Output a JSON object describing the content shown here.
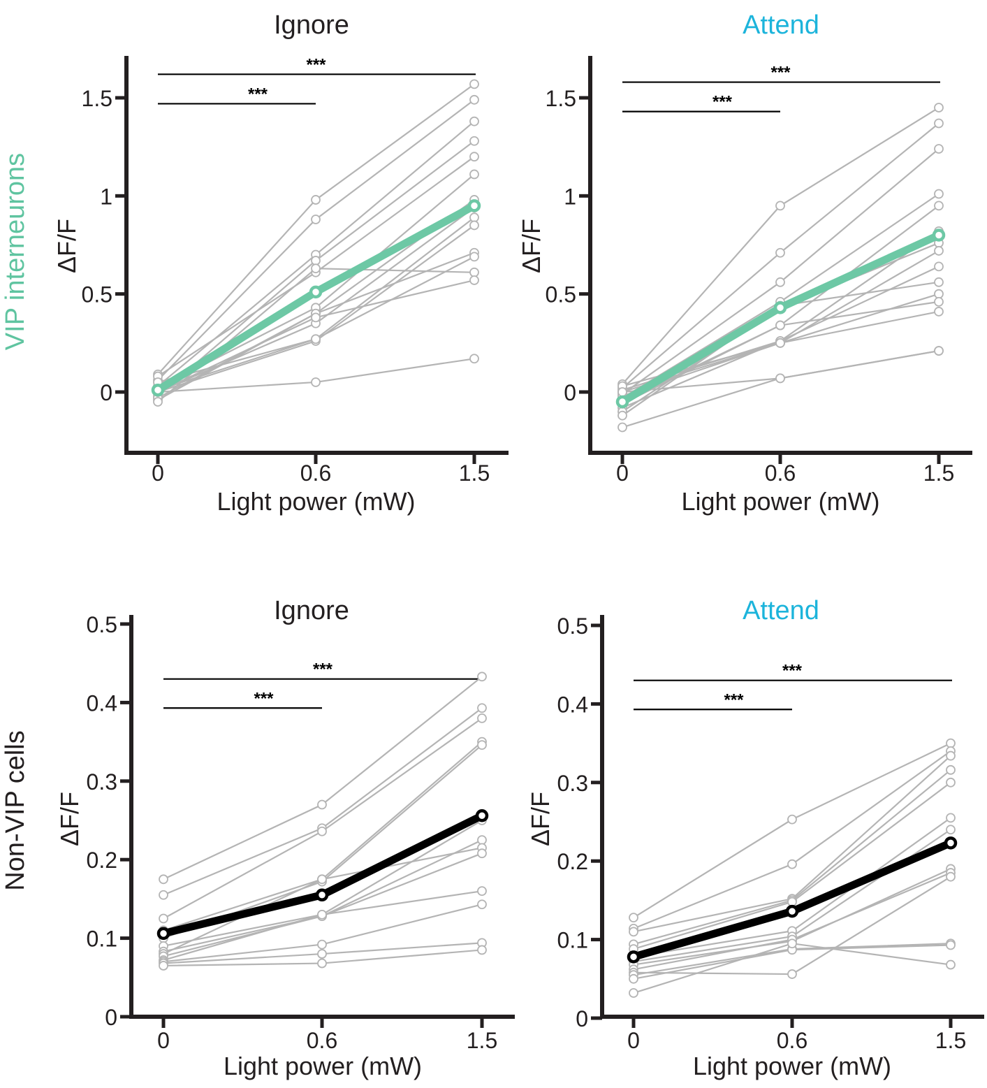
{
  "row_labels": [
    {
      "text": "VIP interneurons",
      "color": "#5fc4a0"
    },
    {
      "text": "Non-VIP cells",
      "color": "#231f20"
    }
  ],
  "colors": {
    "axis": "#231f20",
    "individual": "#b4b4b4",
    "vip_mean": "#6dc8a5",
    "nonvip_mean": "#000000",
    "ignore_title": "#231f20",
    "attend_title": "#1cb4db"
  },
  "significance_marker": "***",
  "chart_data": [
    {
      "type": "line",
      "panel": "top-left",
      "title": "Ignore",
      "title_color": "#231f20",
      "xlabel": "Light power (mW)",
      "ylabel": "ΔF/F",
      "categories": [
        "0",
        "0.6",
        "1.5"
      ],
      "ylim": [
        -0.3,
        1.7
      ],
      "yticks": [
        0,
        0.5,
        1,
        1.5
      ],
      "ytick_labels": [
        "0",
        "0.5",
        "1",
        "1.5"
      ],
      "mean": {
        "name": "mean",
        "values": [
          0.01,
          0.51,
          0.95
        ],
        "color": "#6dc8a5"
      },
      "individual_series": [
        [
          0.09,
          0.98,
          1.57
        ],
        [
          0.06,
          0.88,
          1.49
        ],
        [
          0.03,
          0.7,
          1.38
        ],
        [
          -0.02,
          0.67,
          1.28
        ],
        [
          0.08,
          0.61,
          1.2
        ],
        [
          0.02,
          0.43,
          1.11
        ],
        [
          -0.04,
          0.4,
          0.98
        ],
        [
          0.0,
          0.35,
          0.94
        ],
        [
          0.05,
          0.27,
          0.89
        ],
        [
          0.0,
          0.26,
          0.85
        ],
        [
          -0.03,
          0.4,
          0.71
        ],
        [
          0.01,
          0.27,
          0.69
        ],
        [
          -0.05,
          0.63,
          0.61
        ],
        [
          0.0,
          0.38,
          0.57
        ],
        [
          0.0,
          0.05,
          0.17
        ]
      ],
      "significance": [
        {
          "from": "0",
          "to": "0.6",
          "label": "***",
          "y": 1.47
        },
        {
          "from": "0",
          "to": "1.5",
          "label": "***",
          "y": 1.62
        }
      ]
    },
    {
      "type": "line",
      "panel": "top-right",
      "title": "Attend",
      "title_color": "#1cb4db",
      "xlabel": "Light power (mW)",
      "ylabel": "ΔF/F",
      "categories": [
        "0",
        "0.6",
        "1.5"
      ],
      "ylim": [
        -0.3,
        1.7
      ],
      "yticks": [
        0,
        0.5,
        1,
        1.5
      ],
      "ytick_labels": [
        "0",
        "0.5",
        "1",
        "1.5"
      ],
      "mean": {
        "name": "mean",
        "values": [
          -0.05,
          0.43,
          0.8
        ],
        "color": "#6dc8a5"
      },
      "individual_series": [
        [
          0.04,
          0.95,
          1.45
        ],
        [
          0.02,
          0.71,
          1.37
        ],
        [
          -0.01,
          0.56,
          1.24
        ],
        [
          -0.03,
          0.46,
          1.01
        ],
        [
          -0.05,
          0.34,
          0.95
        ],
        [
          -0.08,
          0.26,
          0.82
        ],
        [
          -0.1,
          0.43,
          0.76
        ],
        [
          0.0,
          0.25,
          0.72
        ],
        [
          0.01,
          0.26,
          0.64
        ],
        [
          -0.12,
          0.44,
          0.56
        ],
        [
          0.03,
          0.25,
          0.5
        ],
        [
          -0.06,
          0.34,
          0.46
        ],
        [
          -0.02,
          0.25,
          0.41
        ],
        [
          -0.18,
          0.07,
          0.21
        ],
        [
          0.0,
          0.07,
          0.21
        ]
      ],
      "significance": [
        {
          "from": "0",
          "to": "0.6",
          "label": "***",
          "y": 1.43
        },
        {
          "from": "0",
          "to": "1.5",
          "label": "***",
          "y": 1.58
        }
      ]
    },
    {
      "type": "line",
      "panel": "bottom-left",
      "title": "Ignore",
      "title_color": "#231f20",
      "xlabel": "Light power (mW)",
      "ylabel": "ΔF/F",
      "categories": [
        "0",
        "0.6",
        "1.5"
      ],
      "ylim": [
        0,
        0.5
      ],
      "yticks": [
        0,
        0.1,
        0.2,
        0.3,
        0.4,
        0.5
      ],
      "ytick_labels": [
        "0",
        "0.1",
        "0.2",
        "0.3",
        "0.4",
        "0.5"
      ],
      "mean": {
        "name": "mean",
        "values": [
          0.106,
          0.155,
          0.256
        ],
        "color": "#000000"
      },
      "individual_series": [
        [
          0.175,
          0.27,
          0.433
        ],
        [
          0.155,
          0.24,
          0.393
        ],
        [
          0.125,
          0.236,
          0.38
        ],
        [
          0.11,
          0.175,
          0.35
        ],
        [
          0.1,
          0.172,
          0.346
        ],
        [
          0.09,
          0.13,
          0.25
        ],
        [
          0.083,
          0.128,
          0.225
        ],
        [
          0.08,
          0.175,
          0.215
        ],
        [
          0.077,
          0.128,
          0.208
        ],
        [
          0.072,
          0.13,
          0.16
        ],
        [
          0.07,
          0.092,
          0.143
        ],
        [
          0.068,
          0.08,
          0.094
        ],
        [
          0.065,
          0.068,
          0.085
        ]
      ],
      "significance": [
        {
          "from": "0",
          "to": "0.6",
          "label": "***",
          "y": 0.393
        },
        {
          "from": "0",
          "to": "1.5",
          "label": "***",
          "y": 0.43
        }
      ]
    },
    {
      "type": "line",
      "panel": "bottom-right",
      "title": "Attend",
      "title_color": "#1cb4db",
      "xlabel": "Light power (mW)",
      "ylabel": "ΔF/F",
      "categories": [
        "0",
        "0.6",
        "1.5"
      ],
      "ylim": [
        0,
        0.5
      ],
      "yticks": [
        0,
        0.1,
        0.2,
        0.3,
        0.4,
        0.5
      ],
      "ytick_labels": [
        "0",
        "0.1",
        "0.2",
        "0.3",
        "0.4",
        "0.5"
      ],
      "mean": {
        "name": "mean",
        "values": [
          0.078,
          0.136,
          0.223
        ],
        "color": "#000000"
      },
      "individual_series": [
        [
          0.128,
          0.253,
          0.35
        ],
        [
          0.114,
          0.196,
          0.34
        ],
        [
          0.11,
          0.152,
          0.334
        ],
        [
          0.094,
          0.15,
          0.316
        ],
        [
          0.088,
          0.148,
          0.3
        ],
        [
          0.078,
          0.111,
          0.255
        ],
        [
          0.072,
          0.104,
          0.24
        ],
        [
          0.068,
          0.098,
          0.19
        ],
        [
          0.062,
          0.1,
          0.185
        ],
        [
          0.058,
          0.056,
          0.18
        ],
        [
          0.055,
          0.088,
          0.095
        ],
        [
          0.05,
          0.087,
          0.093
        ],
        [
          0.032,
          0.095,
          0.068
        ]
      ],
      "significance": [
        {
          "from": "0",
          "to": "0.6",
          "label": "***",
          "y": 0.393
        },
        {
          "from": "0",
          "to": "1.5",
          "label": "***",
          "y": 0.43
        }
      ]
    }
  ]
}
